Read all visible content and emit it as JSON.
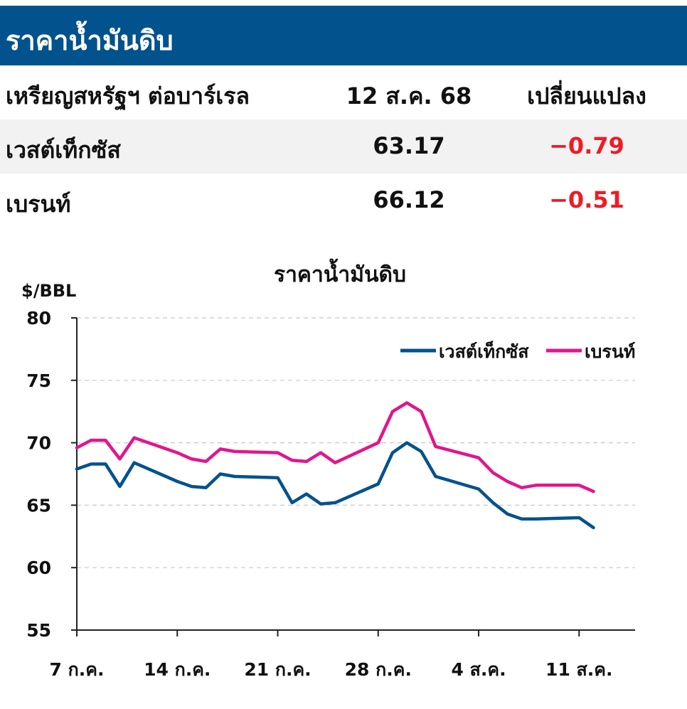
{
  "header": {
    "title": "ราคาน้ำมันดิบ"
  },
  "table": {
    "columns": [
      "เหรียญสหรัฐฯ ต่อบาร์เรล",
      "12 ส.ค. 68",
      "เปลี่ยนแปลง"
    ],
    "rows": [
      {
        "name": "เวสต์เท็กซัส",
        "price": "63.17",
        "change": "−0.79"
      },
      {
        "name": "เบรนท์",
        "price": "66.12",
        "change": "−0.51"
      }
    ]
  },
  "chart_data": {
    "type": "line",
    "title": "ราคาน้ำมันดิบ",
    "ylabel": "$/BBL",
    "xlabel": "",
    "ylim": [
      55,
      80
    ],
    "yticks": [
      "80",
      "75",
      "70",
      "65",
      "60",
      "55"
    ],
    "xtick_labels": [
      "7 ก.ค.",
      "14 ก.ค.",
      "21 ก.ค.",
      "28 ก.ค.",
      "4 ส.ค.",
      "11 ส.ค."
    ],
    "xtick_dates": [
      "2025-07-07",
      "2025-07-14",
      "2025-07-21",
      "2025-07-28",
      "2025-08-04",
      "2025-08-11"
    ],
    "grid": true,
    "legend_position": "top-right",
    "x": [
      "2025-07-07",
      "2025-07-08",
      "2025-07-09",
      "2025-07-10",
      "2025-07-11",
      "2025-07-14",
      "2025-07-15",
      "2025-07-16",
      "2025-07-17",
      "2025-07-18",
      "2025-07-21",
      "2025-07-22",
      "2025-07-23",
      "2025-07-24",
      "2025-07-25",
      "2025-07-28",
      "2025-07-29",
      "2025-07-30",
      "2025-07-31",
      "2025-08-01",
      "2025-08-04",
      "2025-08-05",
      "2025-08-06",
      "2025-08-07",
      "2025-08-08",
      "2025-08-11",
      "2025-08-12"
    ],
    "series": [
      {
        "name": "เวสต์เท็กซัส",
        "color": "#02528d",
        "values": [
          67.9,
          68.3,
          68.3,
          66.5,
          68.4,
          66.9,
          66.5,
          66.4,
          67.5,
          67.3,
          67.2,
          65.2,
          65.9,
          65.1,
          65.2,
          66.7,
          69.2,
          70.0,
          69.3,
          67.3,
          66.3,
          65.2,
          64.3,
          63.9,
          63.9,
          64.0,
          63.2
        ]
      },
      {
        "name": "เบรนท์",
        "color": "#e1168d",
        "values": [
          69.6,
          70.2,
          70.2,
          68.7,
          70.4,
          69.2,
          68.7,
          68.5,
          69.5,
          69.3,
          69.2,
          68.6,
          68.5,
          69.2,
          68.4,
          70.0,
          72.5,
          73.2,
          72.5,
          69.7,
          68.8,
          67.6,
          66.9,
          66.4,
          66.6,
          66.6,
          66.1
        ]
      }
    ]
  }
}
